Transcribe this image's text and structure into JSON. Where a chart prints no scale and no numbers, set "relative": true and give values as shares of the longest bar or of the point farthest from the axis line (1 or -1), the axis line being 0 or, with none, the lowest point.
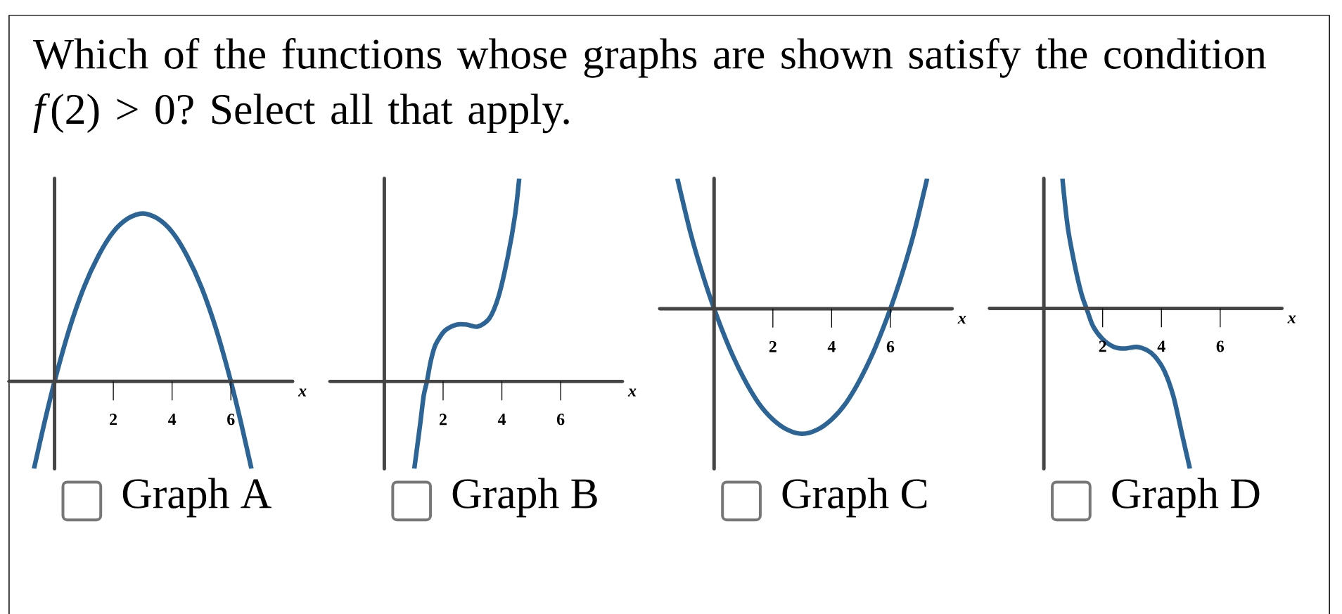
{
  "chart_data": [
    {
      "type": "other",
      "title": "Which of the functions whose graphs are shown satisfy the condition *f*(2) > 0? Select all that apply."
    },
    {
      "type": "line",
      "title": "Graph A",
      "xlabel": "x",
      "relative": true,
      "tick_labels": "x",
      "color": "#2c6496",
      "xlim": [
        -1.55,
        8.1
      ],
      "xticks": [
        2,
        4,
        6
      ],
      "x": [
        -0.7,
        -0.35,
        0,
        0.5,
        1,
        1.5,
        2,
        2.5,
        3,
        3.5,
        4,
        4.5,
        5,
        5.5,
        6,
        6.35,
        6.7
      ],
      "values": [
        -0.52,
        -0.25,
        0,
        0.31,
        0.56,
        0.75,
        0.89,
        0.97,
        1,
        0.97,
        0.89,
        0.75,
        0.56,
        0.31,
        0,
        -0.25,
        -0.52
      ]
    },
    {
      "type": "line",
      "title": "Graph B",
      "xlabel": "x",
      "relative": true,
      "tick_labels": "x",
      "color": "#2c6496",
      "xlim": [
        -1.85,
        8.1
      ],
      "xticks": [
        2,
        4,
        6
      ],
      "x": [
        1.02,
        1.22,
        1.34,
        1.45,
        1.58,
        1.74,
        2.06,
        2.46,
        2.8,
        3.17,
        3.57,
        3.89,
        4.21,
        4.45,
        4.59
      ],
      "values": [
        -0.43,
        -0.21,
        -0.07,
        0,
        0.1,
        0.18,
        0.25,
        0.28,
        0.28,
        0.27,
        0.31,
        0.42,
        0.62,
        0.82,
        1
      ]
    },
    {
      "type": "line",
      "title": "Graph C",
      "xlabel": "x",
      "relative": true,
      "tick_labels": "x",
      "color": "#2c6496",
      "xlim": [
        -1.85,
        8.1
      ],
      "xticks": [
        2,
        4,
        6
      ],
      "x": [
        -1.25,
        -0.8,
        -0.4,
        0,
        0.5,
        1,
        1.5,
        2,
        2.5,
        3,
        3.5,
        4,
        4.5,
        5,
        5.5,
        6,
        6.4,
        6.8,
        7.25
      ],
      "values": [
        1,
        0.58,
        0.27,
        0,
        -0.29,
        -0.53,
        -0.72,
        -0.85,
        -0.93,
        -0.96,
        -0.93,
        -0.85,
        -0.72,
        -0.53,
        -0.29,
        0,
        0.27,
        0.58,
        1
      ]
    },
    {
      "type": "line",
      "title": "Graph D",
      "xlabel": "x",
      "relative": true,
      "tick_labels": "x",
      "color": "#2c6496",
      "xlim": [
        -1.85,
        8.1
      ],
      "xticks": [
        2,
        4,
        6
      ],
      "x": [
        0.63,
        0.81,
        1.05,
        1.28,
        1.45,
        1.67,
        1.99,
        2.38,
        2.75,
        3.16,
        3.5,
        3.78,
        4.1,
        4.41,
        4.72,
        4.97
      ],
      "values": [
        0.81,
        0.51,
        0.27,
        0.09,
        0,
        -0.11,
        -0.19,
        -0.24,
        -0.25,
        -0.24,
        -0.26,
        -0.3,
        -0.39,
        -0.55,
        -0.8,
        -1
      ]
    }
  ]
}
